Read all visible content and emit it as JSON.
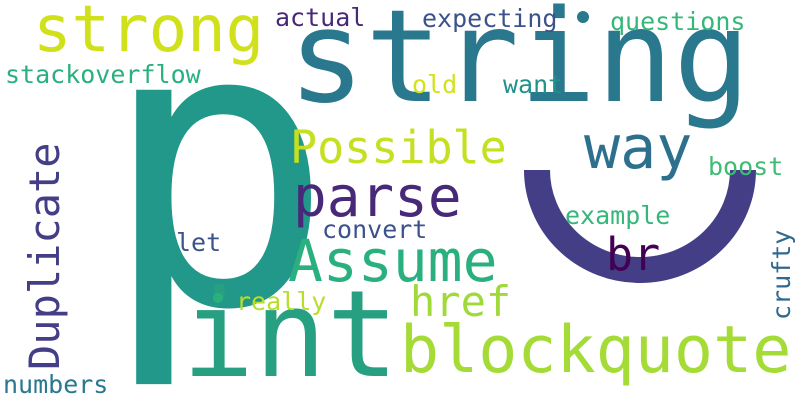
{
  "words": [
    {
      "text": "p",
      "color": "#21988a"
    },
    {
      "text": "string",
      "color": "#2a788e"
    },
    {
      "text": "int",
      "color": "#27a082"
    },
    {
      "text": "strong",
      "color": "#d0e11c"
    },
    {
      "text": "blockquote",
      "color": "#a5db36"
    },
    {
      "text": "Assume",
      "color": "#2ab07f"
    },
    {
      "text": "parse",
      "color": "#482878"
    },
    {
      "text": "way",
      "color": "#2d708e"
    },
    {
      "text": "Possible",
      "color": "#c5e021"
    },
    {
      "text": "Duplicate",
      "color": "#433e85"
    },
    {
      "text": "href",
      "color": "#a0da39"
    },
    {
      "text": "br",
      "color": "#440154"
    },
    {
      "text": "stackoverflow",
      "color": "#2ab07f"
    },
    {
      "text": "actual",
      "color": "#482878"
    },
    {
      "text": "expecting",
      "color": "#3b528b"
    },
    {
      "text": "questions",
      "color": "#35b779"
    },
    {
      "text": "old",
      "color": "#d2e21b"
    },
    {
      "text": "want",
      "color": "#21918c"
    },
    {
      "text": "boost",
      "color": "#3ebc73"
    },
    {
      "text": "example",
      "color": "#35b779"
    },
    {
      "text": "convert",
      "color": "#3b528b"
    },
    {
      "text": "let",
      "color": "#3b528b"
    },
    {
      "text": "really",
      "color": "#b8de29"
    },
    {
      "text": "crufty",
      "color": "#31688e"
    },
    {
      "text": "numbers",
      "color": "#2a788e"
    },
    {
      "text": "C",
      "color": "#433e85"
    }
  ]
}
